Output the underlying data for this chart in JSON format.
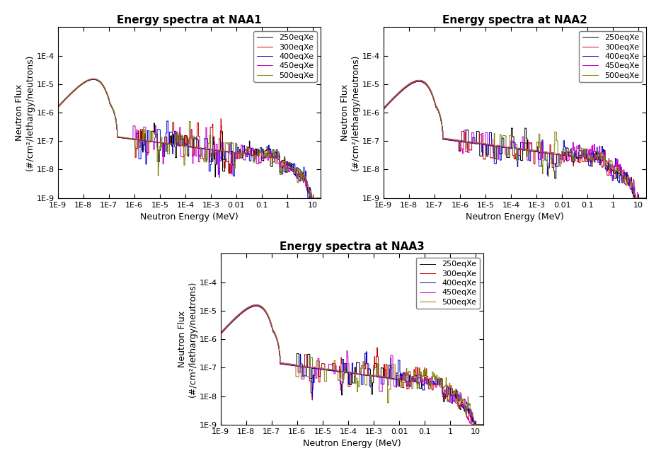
{
  "titles": [
    "Energy spectra at NAA1",
    "Energy spectra at NAA2",
    "Energy spectra at NAA3"
  ],
  "xlabel": "Neutron Energy (MeV)",
  "ylabel": "Neutron Flux\n(#/cm²/lethargy/neutrons)",
  "xlim": [
    1e-09,
    20
  ],
  "ylim": [
    1e-09,
    0.001
  ],
  "legend_labels": [
    "250eqXe",
    "300eqXe",
    "400eqXe",
    "450eqXe",
    "500eqXe"
  ],
  "line_colors": [
    "#000000",
    "#cc0000",
    "#0000cc",
    "#cc00cc",
    "#808000"
  ],
  "title_fontsize": 11,
  "label_fontsize": 9,
  "tick_fontsize": 8,
  "legend_fontsize": 8,
  "background": "#f0f0f0"
}
